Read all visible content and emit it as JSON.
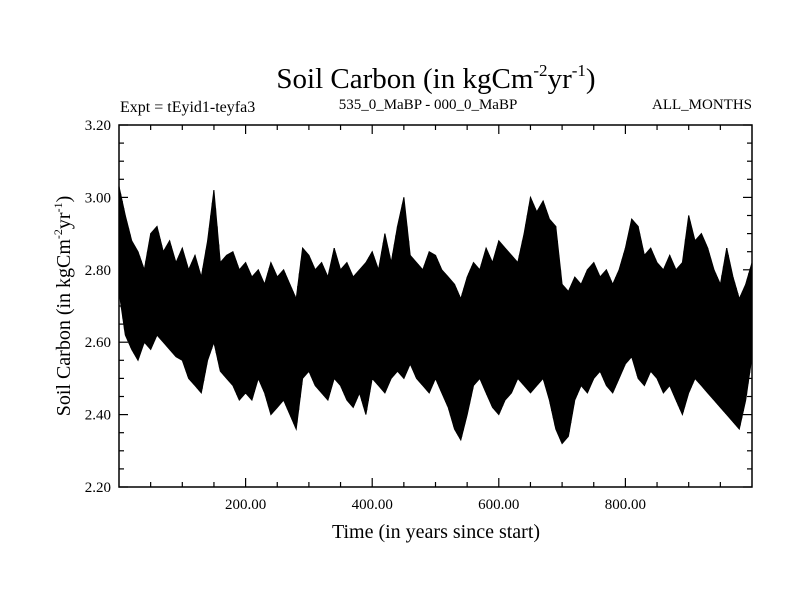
{
  "chart_data": {
    "type": "line",
    "title": "Soil Carbon (in kgCm",
    "title_sup1": "-2",
    "title_mid": "yr",
    "title_sup2": "-1",
    "title_end": ")",
    "subtitle_left": "Expt = tEyid1-teyfa3",
    "subtitle_center": "535_0_MaBP - 000_0_MaBP",
    "subtitle_right": "ALL_MONTHS",
    "xlabel": "Time (in years since start)",
    "ylabel": "Soil Carbon (in kgCm",
    "ylabel_sup1": "-2",
    "ylabel_mid": "yr",
    "ylabel_sup2": "-1",
    "ylabel_end": ")",
    "xlim": [
      0,
      1000
    ],
    "ylim": [
      2.2,
      3.2
    ],
    "xticks": [
      {
        "value": 200,
        "label": "200.00"
      },
      {
        "value": 400,
        "label": "400.00"
      },
      {
        "value": 600,
        "label": "600.00"
      },
      {
        "value": 800,
        "label": "800.00"
      }
    ],
    "yticks": [
      {
        "value": 2.2,
        "label": "2.20"
      },
      {
        "value": 2.4,
        "label": "2.40"
      },
      {
        "value": 2.6,
        "label": "2.60"
      },
      {
        "value": 2.8,
        "label": "2.80"
      },
      {
        "value": 3.0,
        "label": "3.00"
      },
      {
        "value": 3.2,
        "label": "3.20"
      }
    ],
    "series": [
      {
        "name": "soil carbon",
        "color": "#000000",
        "x": [
          0,
          10,
          20,
          30,
          40,
          50,
          60,
          70,
          80,
          90,
          100,
          110,
          120,
          130,
          140,
          150,
          160,
          170,
          180,
          190,
          200,
          210,
          220,
          230,
          240,
          250,
          260,
          270,
          280,
          290,
          300,
          310,
          320,
          330,
          340,
          350,
          360,
          370,
          380,
          390,
          400,
          410,
          420,
          430,
          440,
          450,
          460,
          470,
          480,
          490,
          500,
          510,
          520,
          530,
          540,
          550,
          560,
          570,
          580,
          590,
          600,
          610,
          620,
          630,
          640,
          650,
          660,
          670,
          680,
          690,
          700,
          710,
          720,
          730,
          740,
          750,
          760,
          770,
          780,
          790,
          800,
          810,
          820,
          830,
          840,
          850,
          860,
          870,
          880,
          890,
          900,
          910,
          920,
          930,
          940,
          950,
          960,
          970,
          980,
          990,
          1000
        ],
        "upper": [
          3.03,
          2.95,
          2.88,
          2.85,
          2.8,
          2.9,
          2.92,
          2.85,
          2.88,
          2.82,
          2.86,
          2.8,
          2.84,
          2.78,
          2.88,
          3.02,
          2.82,
          2.84,
          2.85,
          2.8,
          2.82,
          2.78,
          2.8,
          2.76,
          2.82,
          2.78,
          2.8,
          2.76,
          2.72,
          2.86,
          2.84,
          2.8,
          2.82,
          2.78,
          2.86,
          2.8,
          2.82,
          2.78,
          2.8,
          2.82,
          2.85,
          2.8,
          2.9,
          2.82,
          2.92,
          3.0,
          2.84,
          2.82,
          2.8,
          2.85,
          2.84,
          2.8,
          2.78,
          2.76,
          2.72,
          2.78,
          2.82,
          2.8,
          2.86,
          2.82,
          2.88,
          2.86,
          2.84,
          2.82,
          2.9,
          3.0,
          2.96,
          2.99,
          2.94,
          2.92,
          2.76,
          2.74,
          2.78,
          2.76,
          2.8,
          2.82,
          2.78,
          2.8,
          2.76,
          2.8,
          2.86,
          2.94,
          2.92,
          2.84,
          2.86,
          2.82,
          2.8,
          2.84,
          2.8,
          2.82,
          2.95,
          2.88,
          2.9,
          2.86,
          2.8,
          2.76,
          2.86,
          2.78,
          2.72,
          2.76,
          2.82
        ],
        "lower": [
          2.74,
          2.62,
          2.58,
          2.55,
          2.6,
          2.58,
          2.62,
          2.6,
          2.58,
          2.56,
          2.55,
          2.5,
          2.48,
          2.46,
          2.55,
          2.6,
          2.52,
          2.5,
          2.48,
          2.44,
          2.46,
          2.44,
          2.5,
          2.46,
          2.4,
          2.42,
          2.44,
          2.4,
          2.36,
          2.5,
          2.52,
          2.48,
          2.46,
          2.44,
          2.5,
          2.48,
          2.44,
          2.42,
          2.46,
          2.4,
          2.5,
          2.48,
          2.46,
          2.5,
          2.52,
          2.5,
          2.54,
          2.5,
          2.48,
          2.46,
          2.5,
          2.46,
          2.42,
          2.36,
          2.33,
          2.4,
          2.48,
          2.5,
          2.46,
          2.42,
          2.4,
          2.44,
          2.46,
          2.5,
          2.48,
          2.46,
          2.48,
          2.5,
          2.44,
          2.36,
          2.32,
          2.34,
          2.44,
          2.48,
          2.46,
          2.5,
          2.52,
          2.48,
          2.46,
          2.5,
          2.54,
          2.56,
          2.5,
          2.48,
          2.52,
          2.5,
          2.46,
          2.48,
          2.44,
          2.4,
          2.46,
          2.5,
          2.48,
          2.46,
          2.44,
          2.42,
          2.4,
          2.38,
          2.36,
          2.44,
          2.56
        ]
      }
    ]
  }
}
